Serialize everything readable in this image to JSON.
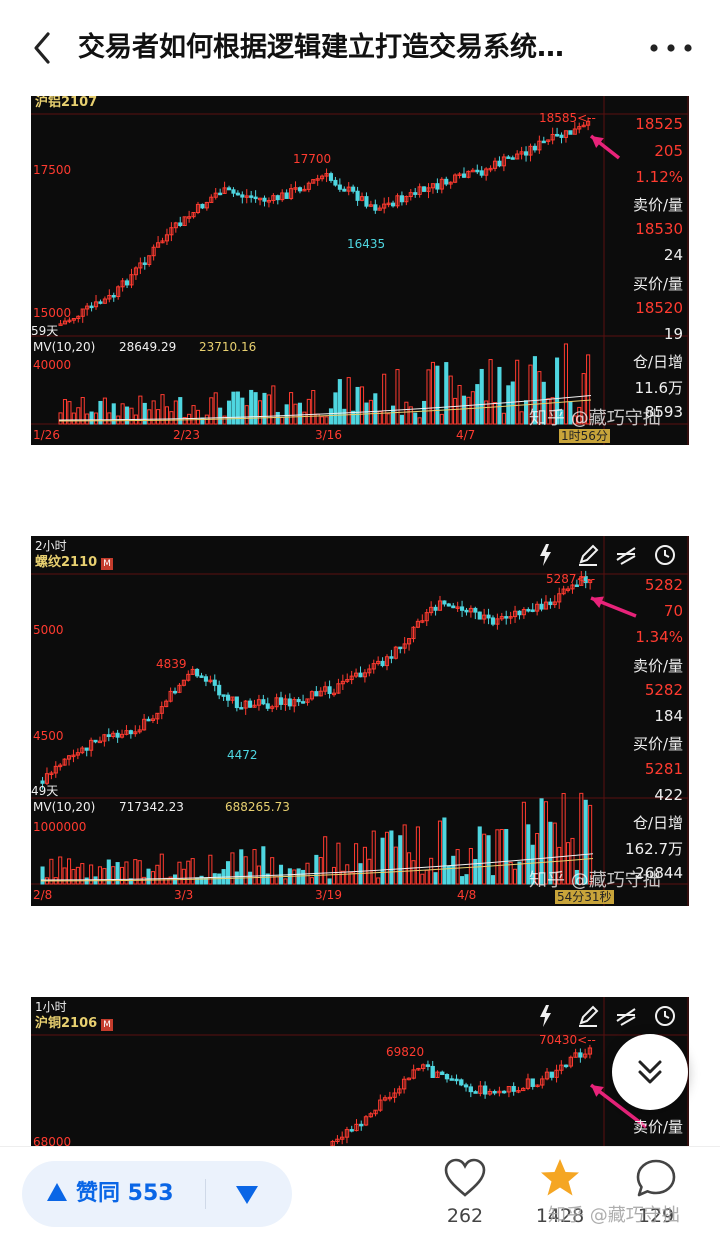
{
  "header": {
    "title": "交易者如何根据逻辑建立打造交易系统…"
  },
  "charts": [
    {
      "period": "",
      "symbol": "沪铝2107",
      "high_label": "17700",
      "low_label": "16435",
      "last_label": "18585<--",
      "y_level_top": "17500",
      "y_level_bottom": "15000",
      "days_label": "59天",
      "mv_label": "MV(10,20)",
      "mv_values": [
        "28649.29",
        "23710.16"
      ],
      "vol_level": "40000",
      "dates": [
        "1/26",
        "2/23",
        "3/16",
        "4/7"
      ],
      "timer": "1时56分",
      "side": {
        "price": "18525",
        "change": "205",
        "pct": "1.12%",
        "ask_label": "卖价/量",
        "ask_price": "18530",
        "ask_qty": "24",
        "bid_label": "买价/量",
        "bid_price": "18520",
        "bid_qty": "19",
        "oi_label": "仓/日增",
        "oi": "11.6万",
        "oi_change": "8593"
      },
      "watermark": "知乎 @藏巧守拙"
    },
    {
      "period": "2小时",
      "symbol": "螺纹2110",
      "high_label": "4839",
      "low_label": "4472",
      "last_label": "5287<--",
      "y_level_top": "5000",
      "y_level_bottom": "4500",
      "days_label": "49天",
      "mv_label": "MV(10,20)",
      "mv_values": [
        "717342.23",
        "688265.73"
      ],
      "vol_level": "1000000",
      "dates": [
        "2/8",
        "3/3",
        "3/19",
        "4/8"
      ],
      "timer": "54分31秒",
      "side": {
        "price": "5282",
        "change": "70",
        "pct": "1.34%",
        "ask_label": "卖价/量",
        "ask_price": "5282",
        "ask_qty": "184",
        "bid_label": "买价/量",
        "bid_price": "5281",
        "bid_qty": "422",
        "oi_label": "仓/日增",
        "oi": "162.7万",
        "oi_change": "-26844"
      },
      "watermark": "知乎 @藏巧守拙"
    },
    {
      "period": "1小时",
      "symbol": "沪铜2106",
      "high_label": "69820",
      "last_label": "70430<--",
      "y_level_bottom": "68000",
      "side": {
        "ask_label": "卖价/量"
      }
    }
  ],
  "footer": {
    "vote_up_label": "赞同 553",
    "like_count": "262",
    "favorite_count": "1428",
    "comment_count": "129",
    "watermark": "知乎 @藏巧守拙"
  },
  "colors": {
    "up": "#ff3b30",
    "down": "#4fd6e0",
    "panel_bg": "#0c0c0c",
    "accent_blue": "#0a66e6",
    "favorite_star": "#f5a623",
    "arrow": "#e8237a"
  },
  "icons": [
    "back-arrow-icon",
    "more-dots-icon",
    "lightning-icon",
    "pen-icon",
    "draw-lines-icon",
    "clock-icon",
    "scroll-down-icon",
    "heart-icon",
    "star-icon",
    "comment-icon",
    "vote-up-icon",
    "vote-down-icon"
  ]
}
